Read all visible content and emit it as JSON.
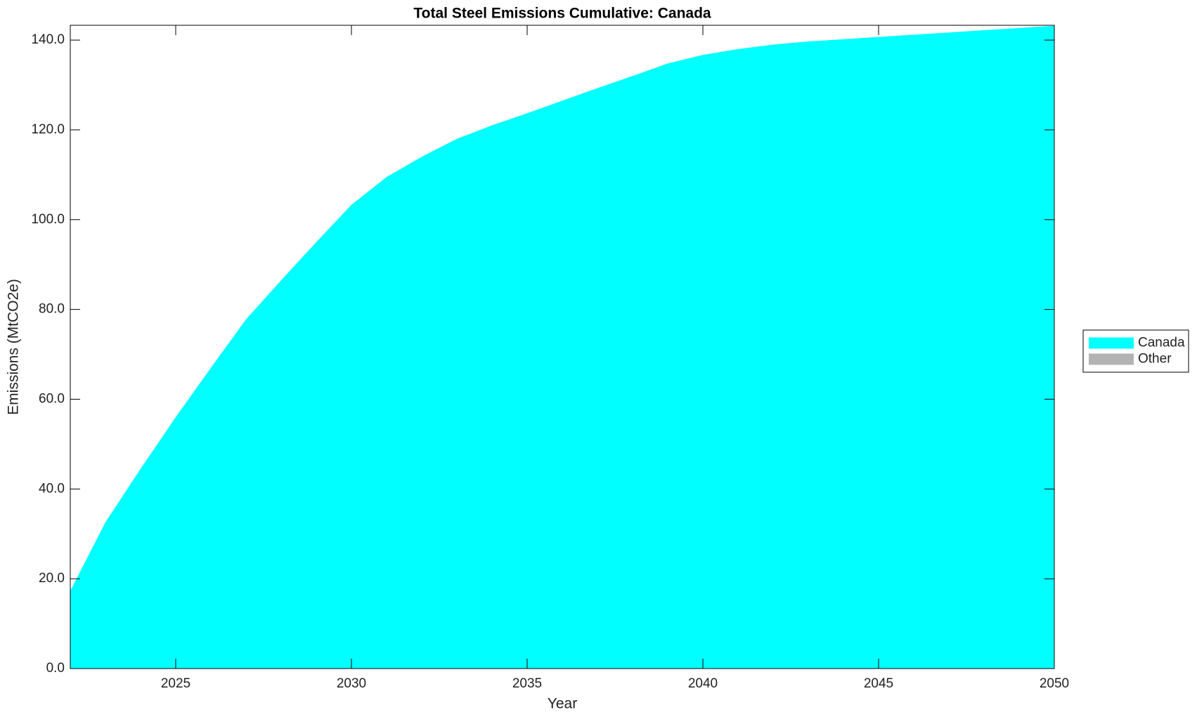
{
  "chart_data": {
    "type": "stacked_area",
    "title": "Total Steel Emissions Cumulative: Canada",
    "x_label": "Year",
    "y_label": "Emissions (MtCO2e)",
    "x": [
      2022,
      2023,
      2024,
      2025,
      2026,
      2027,
      2028,
      2029,
      2030,
      2031,
      2032,
      2033,
      2034,
      2035,
      2036,
      2037,
      2038,
      2039,
      2040,
      2041,
      2042,
      2043,
      2044,
      2045,
      2046,
      2047,
      2048,
      2049,
      2050
    ],
    "series": [
      {
        "name": "Canada",
        "color": "#00ffff",
        "values": [
          17.3,
          32.6,
          44.5,
          56,
          67,
          77.8,
          86.5,
          95,
          103.3,
          109.5,
          114,
          118,
          121,
          123.7,
          126.5,
          129.3,
          132,
          134.8,
          136.7,
          138,
          139,
          139.7,
          140.2,
          140.7,
          141.2,
          141.7,
          142.2,
          142.7,
          143.2
        ]
      },
      {
        "name": "Other",
        "color": "#b3b3b3",
        "values": [
          0,
          0,
          0,
          0,
          0,
          0,
          0,
          0,
          0,
          0,
          0,
          0,
          0,
          0,
          0,
          0,
          0,
          0,
          0,
          0,
          0,
          0,
          0,
          0,
          0,
          0,
          0,
          0,
          0
        ]
      }
    ],
    "xlim": [
      2022,
      2050
    ],
    "xticks": [
      2025,
      2030,
      2035,
      2040,
      2045,
      2050
    ],
    "ylim": [
      0,
      143.3
    ],
    "yticks": [
      {
        "value": 0,
        "label": "0.0"
      },
      {
        "value": 20,
        "label": "20.0"
      },
      {
        "value": 40,
        "label": "40.0"
      },
      {
        "value": 60,
        "label": "60.0"
      },
      {
        "value": 80,
        "label": "80.0"
      },
      {
        "value": 100,
        "label": "100.0"
      },
      {
        "value": 120,
        "label": "120.0"
      },
      {
        "value": 140,
        "label": "140.0"
      }
    ],
    "legend": "right"
  }
}
